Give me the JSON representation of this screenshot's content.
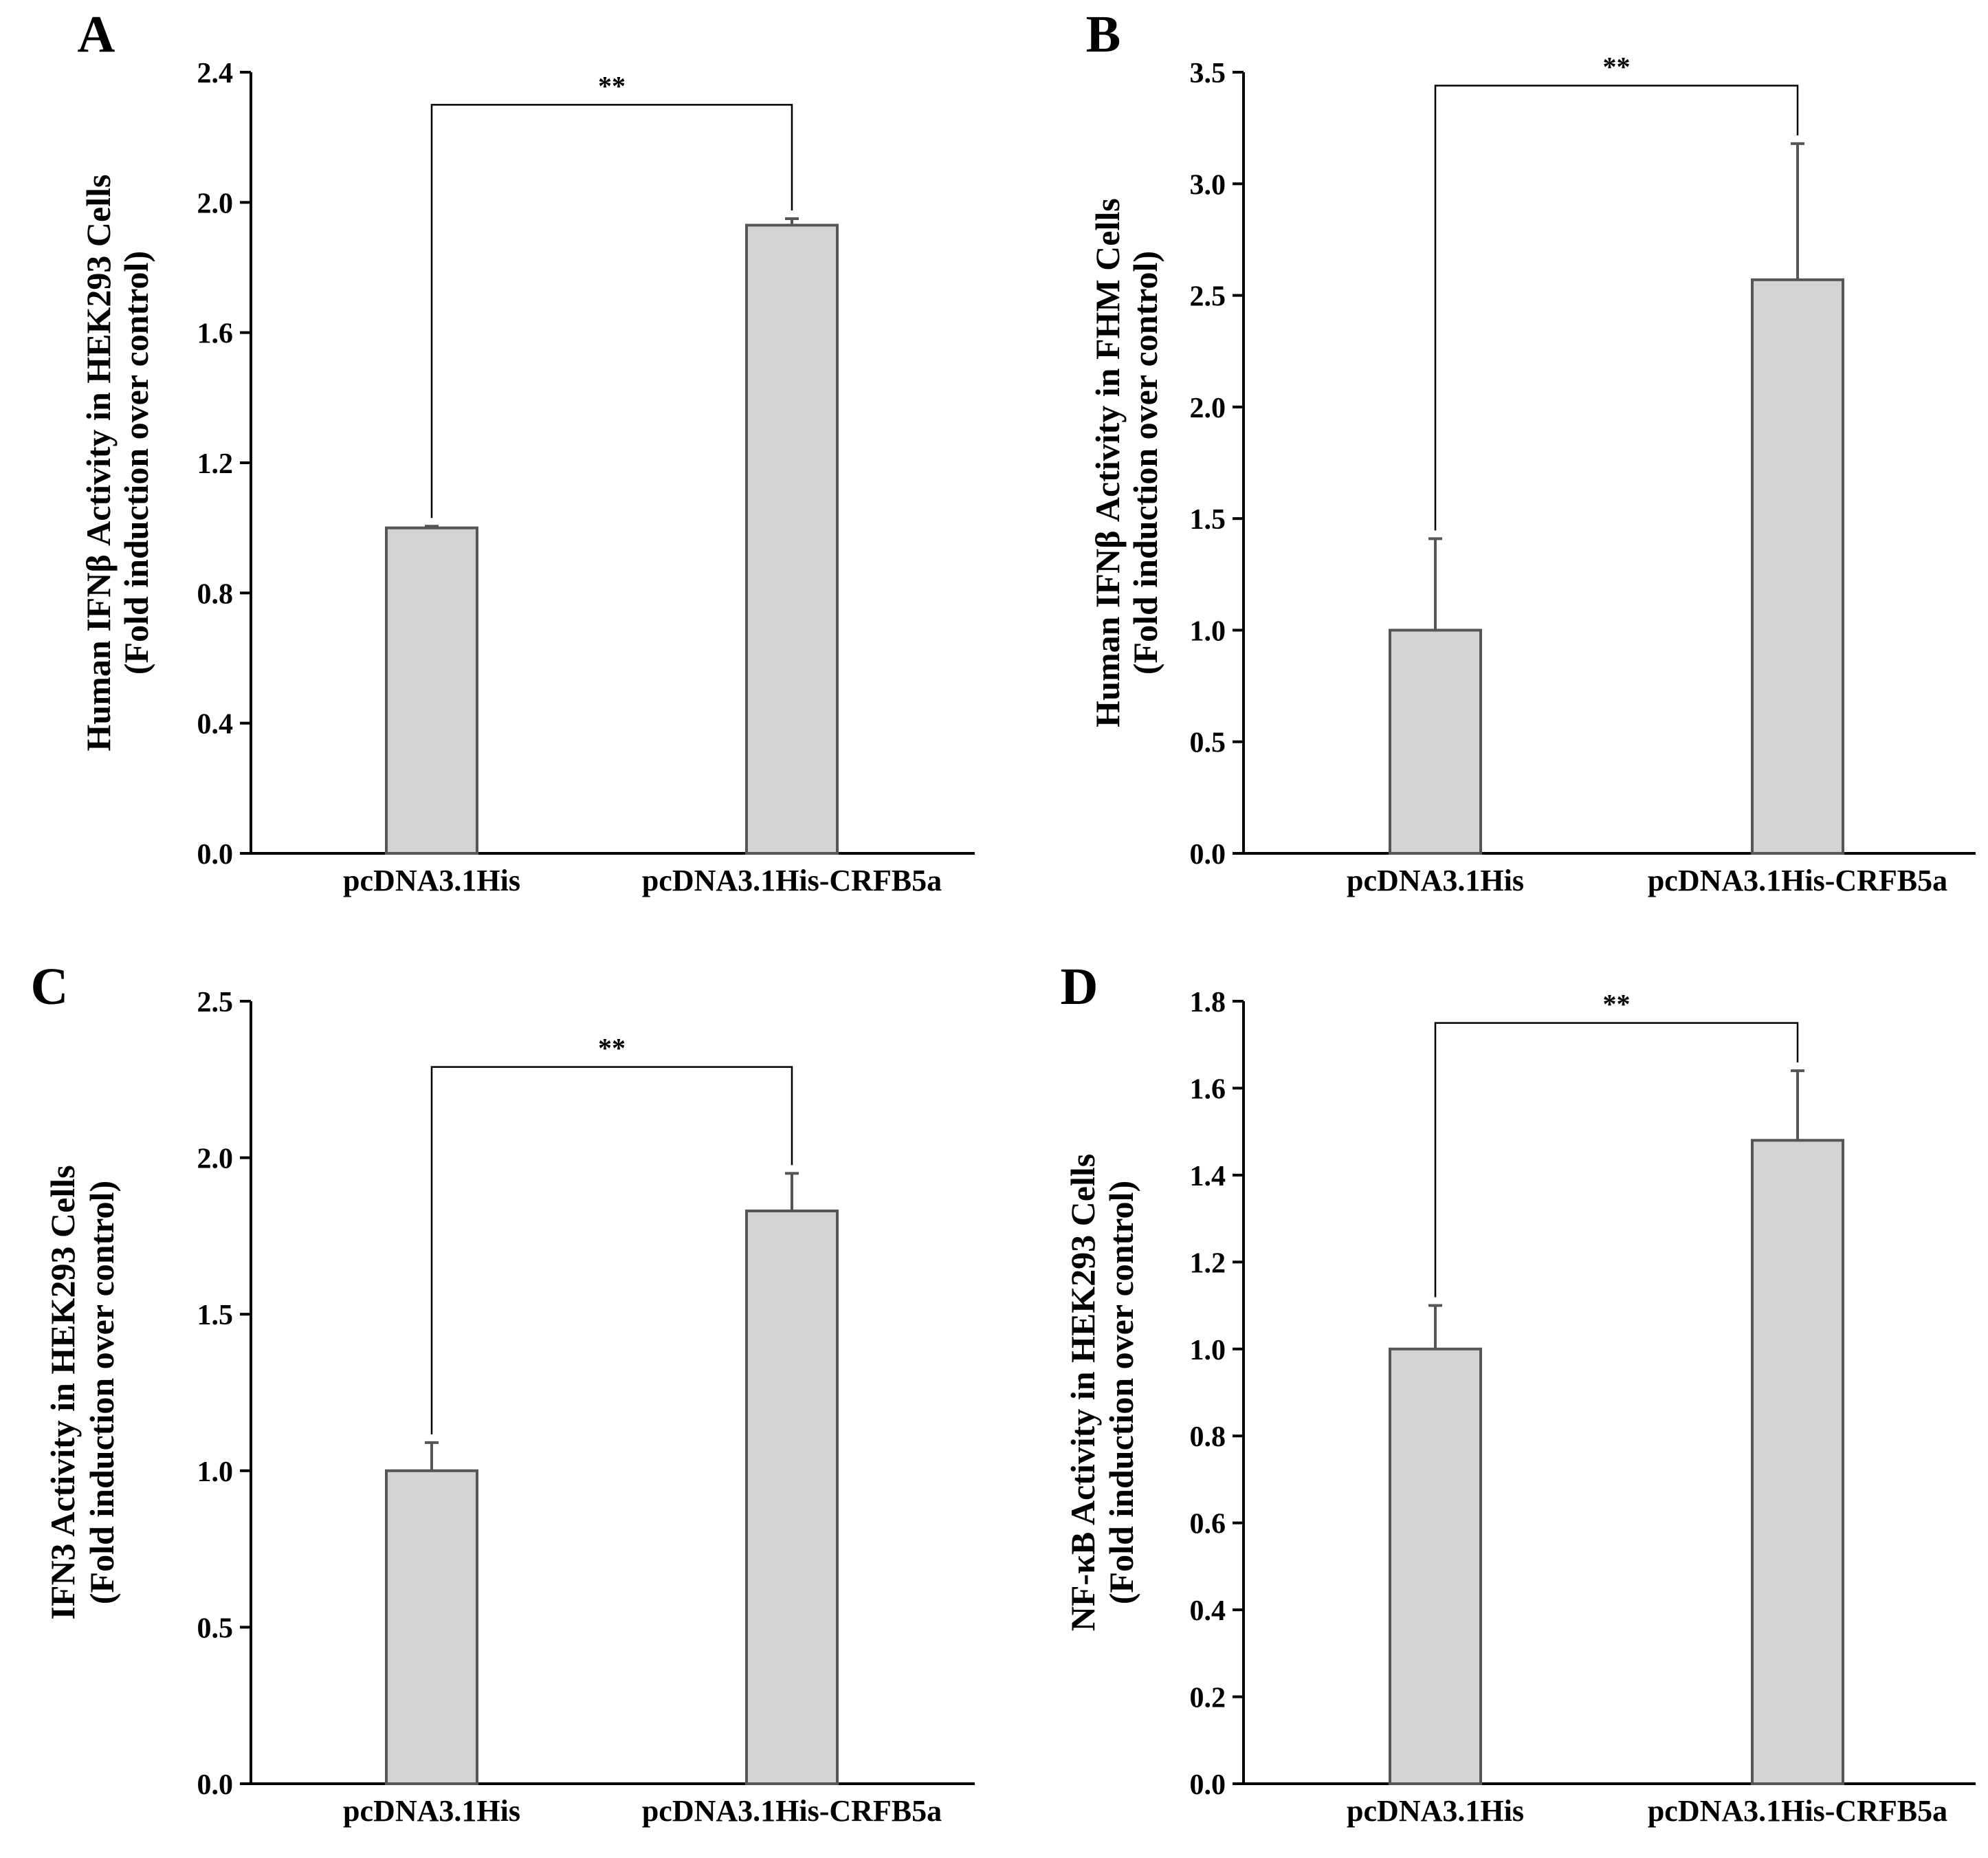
{
  "colors": {
    "bar_fill": "#d3d3d3",
    "bar_stroke": "#555555",
    "axis": "#000000",
    "bracket": "#000000"
  },
  "chart_data": [
    {
      "type": "bar",
      "panel_label": "A",
      "categories": [
        "pcDNA3.1His",
        "pcDNA3.1His-CRFB5a"
      ],
      "values": [
        1.0,
        1.93
      ],
      "errors": [
        0.005,
        0.02
      ],
      "ylim": [
        0,
        2.4
      ],
      "yticks": [
        0.0,
        0.4,
        0.8,
        1.2,
        1.6,
        2.0,
        2.4
      ],
      "ytick_labels": [
        "0.0",
        "0.4",
        "0.8",
        "1.2",
        "1.6",
        "2.0",
        "2.4"
      ],
      "ylabel": [
        "Human IFNβ Activity in HEK293 Cells",
        "(Fold induction over control)"
      ],
      "xlabel": "",
      "significance": {
        "label": "**",
        "level": 2.3
      },
      "grid": false
    },
    {
      "type": "bar",
      "panel_label": "B",
      "categories": [
        "pcDNA3.1His",
        "pcDNA3.1His-CRFB5a"
      ],
      "values": [
        1.0,
        2.57
      ],
      "errors": [
        0.41,
        0.61
      ],
      "ylim": [
        0,
        3.5
      ],
      "yticks": [
        0.0,
        0.5,
        1.0,
        1.5,
        2.0,
        2.5,
        3.0,
        3.5
      ],
      "ytick_labels": [
        "0.0",
        "0.5",
        "1.0",
        "1.5",
        "2.0",
        "2.5",
        "3.0",
        "3.5"
      ],
      "ylabel": [
        "Human IFNβ Activity in FHM Cells",
        "(Fold induction over control)"
      ],
      "xlabel": "",
      "significance": {
        "label": "**",
        "level": 3.44
      },
      "grid": false
    },
    {
      "type": "bar",
      "panel_label": "C",
      "categories": [
        "pcDNA3.1His",
        "pcDNA3.1His-CRFB5a"
      ],
      "values": [
        1.0,
        1.83
      ],
      "errors": [
        0.09,
        0.12
      ],
      "ylim": [
        0,
        2.5
      ],
      "yticks": [
        0.0,
        0.5,
        1.0,
        1.5,
        2.0,
        2.5
      ],
      "ytick_labels": [
        "0.0",
        "0.5",
        "1.0",
        "1.5",
        "2.0",
        "2.5"
      ],
      "ylabel": [
        "IFN3 Activity in HEK293 Cells",
        "(Fold induction over control)"
      ],
      "xlabel": "",
      "significance": {
        "label": "**",
        "level": 2.29
      },
      "grid": false
    },
    {
      "type": "bar",
      "panel_label": "D",
      "categories": [
        "pcDNA3.1His",
        "pcDNA3.1His-CRFB5a"
      ],
      "values": [
        1.0,
        1.48
      ],
      "errors": [
        0.1,
        0.16
      ],
      "ylim": [
        0,
        1.8
      ],
      "yticks": [
        0.0,
        0.2,
        0.4,
        0.6,
        0.8,
        1.0,
        1.2,
        1.4,
        1.6,
        1.8
      ],
      "ytick_labels": [
        "0.0",
        "0.2",
        "0.4",
        "0.6",
        "0.8",
        "1.0",
        "1.2",
        "1.4",
        "1.6",
        "1.8"
      ],
      "ylabel": [
        "NF-κB Activity in HEK293 Cells",
        "(Fold induction over control)"
      ],
      "xlabel": "",
      "significance": {
        "label": "**",
        "level": 1.75
      },
      "grid": false
    }
  ]
}
